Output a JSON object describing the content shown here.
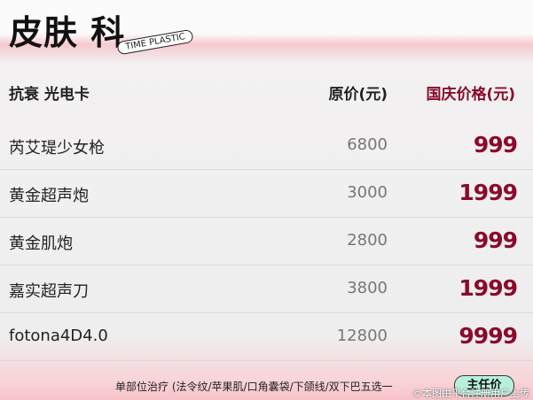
{
  "header": {
    "title": "皮肤 科",
    "tag": "TIME PLASTIC"
  },
  "table": {
    "columns": [
      "抗衰 光电卡",
      "原价(元)",
      "国庆价格(元)"
    ],
    "rows": [
      [
        "芮艾瑅少女枪",
        6800,
        999
      ],
      [
        "黄金超声炮",
        3000,
        1999
      ],
      [
        "黄金肌炮",
        2800,
        999
      ],
      [
        "嘉实超声刀",
        3800,
        1999
      ],
      [
        "fotona4D4.0",
        12800,
        9999
      ]
    ]
  },
  "footer": {
    "note": "单部位治疗 (法令纹/苹果肌/口角囊袋/下颌线/双下巴五选一",
    "button": "主任价",
    "copyright": "©本图由平台注册用户上传"
  }
}
